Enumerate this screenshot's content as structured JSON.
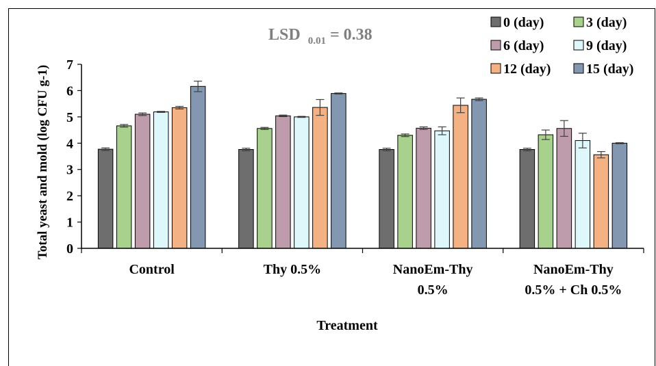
{
  "chart_data": {
    "type": "bar",
    "title": "",
    "annotation": {
      "prefix": "LSD",
      "subscript": "0.01",
      "suffix": "= 0.38"
    },
    "xlabel": "Treatment",
    "ylabel": "Total yeast and mold (log CFU g-1)",
    "ylim": [
      0,
      7
    ],
    "yticks": [
      "0",
      "1",
      "2",
      "3",
      "4",
      "5",
      "6",
      "7"
    ],
    "categories": [
      [
        "Control"
      ],
      [
        "Thy 0.5%"
      ],
      [
        "NanoEm-Thy",
        "0.5%"
      ],
      [
        "NanoEm-Thy",
        "0.5% + Ch 0.5%"
      ]
    ],
    "legend_position": "top-right",
    "series": [
      {
        "name": "0 (day)",
        "color": "#6e6e6e",
        "values": [
          3.77,
          3.76,
          3.76,
          3.76
        ],
        "errors": [
          0.05,
          0.05,
          0.05,
          0.05
        ]
      },
      {
        "name": "3 (day)",
        "color": "#a9d18e",
        "values": [
          4.66,
          4.56,
          4.3,
          4.32
        ],
        "errors": [
          0.05,
          0.04,
          0.05,
          0.18
        ]
      },
      {
        "name": "6 (day)",
        "color": "#bf9cac",
        "values": [
          5.1,
          5.04,
          4.57,
          4.56
        ],
        "errors": [
          0.05,
          0.03,
          0.05,
          0.3
        ]
      },
      {
        "name": "9 (day)",
        "color": "#ddf7fb",
        "values": [
          5.19,
          5.0,
          4.47,
          4.1
        ],
        "errors": [
          0.02,
          0.02,
          0.15,
          0.28
        ]
      },
      {
        "name": "12 (day)",
        "color": "#f4b183",
        "values": [
          5.35,
          5.36,
          5.44,
          3.56
        ],
        "errors": [
          0.05,
          0.3,
          0.28,
          0.12
        ]
      },
      {
        "name": "15 (day)",
        "color": "#8497b0",
        "values": [
          6.16,
          5.89,
          5.67,
          4.0
        ],
        "errors": [
          0.2,
          0.02,
          0.05,
          0.02
        ]
      }
    ]
  }
}
